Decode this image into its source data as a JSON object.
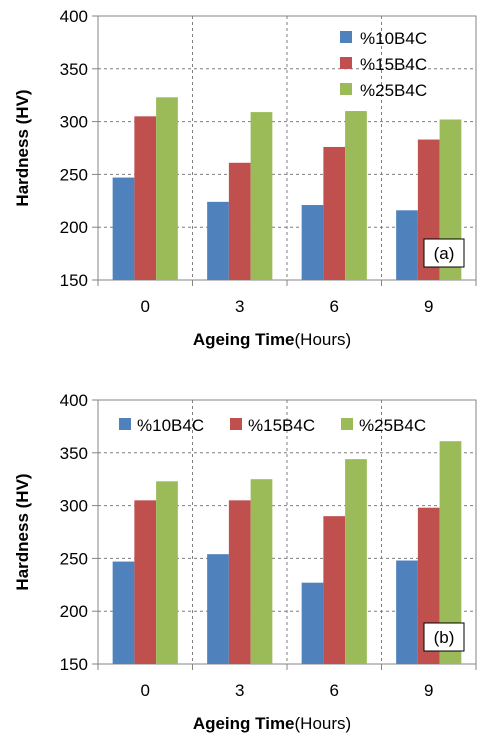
{
  "colors": {
    "s10": "#4f81bd",
    "s15": "#c0504d",
    "s25": "#9bbb59",
    "grid": "#7f7f7f",
    "axis": "#868686"
  },
  "chart_data": [
    {
      "type": "bar",
      "panel_label": "(a)",
      "categories": [
        "0",
        "3",
        "6",
        "9"
      ],
      "series": [
        {
          "name": "%10B4C",
          "values": [
            247,
            224,
            221,
            216
          ]
        },
        {
          "name": "%15B4C",
          "values": [
            305,
            261,
            276,
            283
          ]
        },
        {
          "name": "%25B4C",
          "values": [
            323,
            309,
            310,
            302
          ]
        }
      ],
      "ylabel": "Hardness (HV)",
      "xlabel_bold": "Ageing Time",
      "xlabel_rest": "(Hours)",
      "ylim": [
        150,
        400
      ],
      "yticks": [
        "150",
        "200",
        "250",
        "300",
        "350",
        "400"
      ],
      "grid": true,
      "legend_position": "top-right"
    },
    {
      "type": "bar",
      "panel_label": "(b)",
      "categories": [
        "0",
        "3",
        "6",
        "9"
      ],
      "series": [
        {
          "name": "%10B4C",
          "values": [
            247,
            254,
            227,
            248
          ]
        },
        {
          "name": "%15B4C",
          "values": [
            305,
            305,
            290,
            298
          ]
        },
        {
          "name": "%25B4C",
          "values": [
            323,
            325,
            344,
            361
          ]
        }
      ],
      "ylabel": "Hardness (HV)",
      "xlabel_bold": "Ageing Time",
      "xlabel_rest": "(Hours)",
      "ylim": [
        150,
        400
      ],
      "yticks": [
        "150",
        "200",
        "250",
        "300",
        "350",
        "400"
      ],
      "grid": true,
      "legend_position": "top"
    }
  ]
}
